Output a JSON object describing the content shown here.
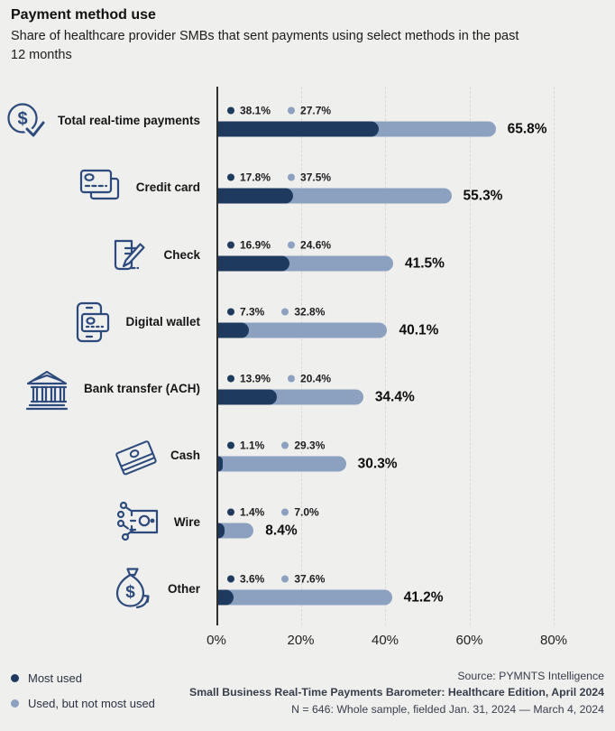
{
  "title": "Payment method use",
  "subtitle": "Share of healthcare provider SMBs that sent payments using select methods in the past 12 months",
  "colors": {
    "most_used": "#1e3a5f",
    "not_most_used": "#8ca1c0",
    "icon": "#2c4a7c",
    "background": "#efefee"
  },
  "chart_data": {
    "type": "bar",
    "orientation": "horizontal",
    "title": "Payment method use",
    "categories": [
      "Total real-time payments",
      "Credit card",
      "Check",
      "Digital wallet",
      "Bank transfer (ACH)",
      "Cash",
      "Wire",
      "Other"
    ],
    "series": [
      {
        "name": "Most used",
        "color": "#1e3a5f",
        "values": [
          38.1,
          17.8,
          16.9,
          7.3,
          13.9,
          1.1,
          1.4,
          3.6
        ]
      },
      {
        "name": "Used, but not most used",
        "color": "#8ca1c0",
        "values": [
          27.7,
          37.5,
          24.6,
          32.8,
          20.4,
          29.3,
          7.0,
          37.6
        ]
      }
    ],
    "totals": [
      65.8,
      55.3,
      41.5,
      40.1,
      34.4,
      30.3,
      8.4,
      41.2
    ],
    "x_ticks": [
      "0%",
      "20%",
      "40%",
      "60%",
      "80%"
    ],
    "x_tick_values": [
      0,
      20,
      40,
      60,
      80
    ],
    "xlim": [
      0,
      92
    ],
    "grid": "vertical-dashed",
    "legend_position": "bottom-left"
  },
  "icons": [
    "real-time-payments-icon",
    "credit-card-icon",
    "check-icon",
    "digital-wallet-icon",
    "bank-transfer-icon",
    "cash-icon",
    "wire-icon",
    "other-icon"
  ],
  "source": {
    "line1": "Source: PYMNTS Intelligence",
    "line2": "Small Business Real-Time Payments Barometer: Healthcare Edition, April 2024",
    "line3": "N = 646: Whole sample, fielded Jan. 31, 2024 — March 4, 2024"
  }
}
